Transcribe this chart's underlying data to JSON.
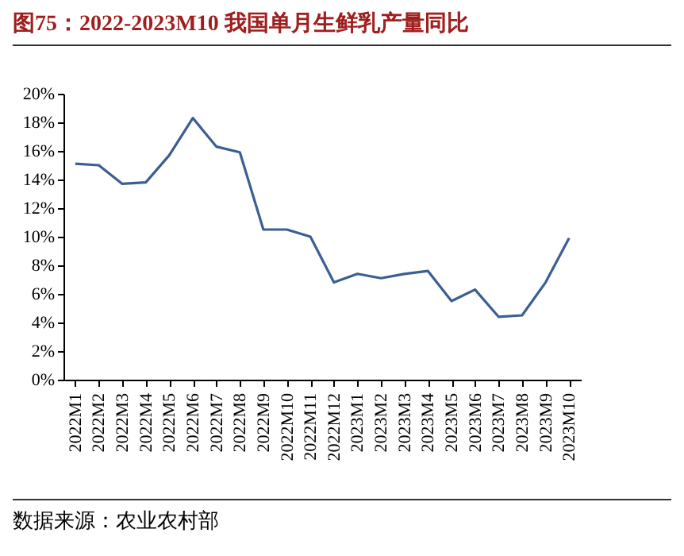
{
  "chart_data": {
    "type": "line",
    "title": "图75：2022-2023M10 我国单月生鲜乳产量同比",
    "categories": [
      "2022M1",
      "2022M2",
      "2022M3",
      "2022M4",
      "2022M5",
      "2022M6",
      "2022M7",
      "2022M8",
      "2022M9",
      "2022M10",
      "2022M11",
      "2022M12",
      "2023M1",
      "2023M2",
      "2023M3",
      "2023M4",
      "2023M5",
      "2023M6",
      "2023M7",
      "2023M8",
      "2023M9",
      "2023M10"
    ],
    "series": [
      {
        "color": "#3a5f92",
        "values": [
          15.1,
          15.0,
          13.7,
          13.8,
          15.7,
          18.3,
          16.3,
          15.9,
          10.5,
          10.5,
          10.0,
          6.8,
          7.4,
          7.1,
          7.4,
          7.6,
          5.5,
          6.3,
          4.4,
          4.5,
          6.8,
          9.9
        ]
      }
    ],
    "ylim": [
      0,
      20
    ],
    "yticks": [
      {
        "value": 0,
        "label": "0%"
      },
      {
        "value": 2,
        "label": "2%"
      },
      {
        "value": 4,
        "label": "4%"
      },
      {
        "value": 6,
        "label": "6%"
      },
      {
        "value": 8,
        "label": "8%"
      },
      {
        "value": 10,
        "label": "10%"
      },
      {
        "value": 12,
        "label": "12%"
      },
      {
        "value": 14,
        "label": "14%"
      },
      {
        "value": 16,
        "label": "16%"
      },
      {
        "value": 18,
        "label": "18%"
      },
      {
        "value": 20,
        "label": "20%"
      }
    ],
    "grid": false,
    "legend": false,
    "marker": "none",
    "line_style": "solid",
    "annotations": [
      "数据来源：农业农村部"
    ]
  }
}
